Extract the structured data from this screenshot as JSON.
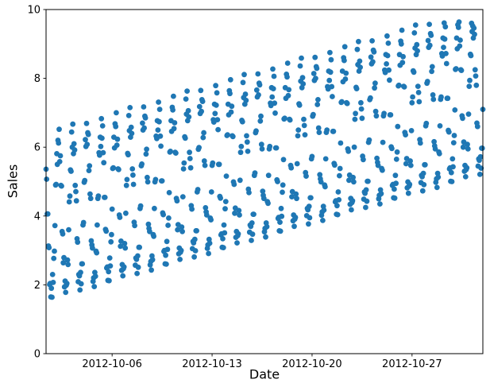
{
  "chart_data": {
    "type": "scatter",
    "title": "",
    "xlabel": "Date",
    "ylabel": "Sales",
    "marker_color": "#1f77b4",
    "axis_color": "#000000",
    "background_color": "#ffffff",
    "grid": false,
    "legend_position": "none",
    "ylim": [
      0,
      10
    ],
    "y_ticks": [
      0,
      2,
      4,
      6,
      8,
      10
    ],
    "x_range_days": [
      0.375,
      30.9583
    ],
    "x_ticks": [
      {
        "day": 5,
        "label": "2012-10-06"
      },
      {
        "day": 12,
        "label": "2012-10-13"
      },
      {
        "day": 19,
        "label": "2012-10-20"
      },
      {
        "day": 26,
        "label": "2012-10-27"
      }
    ],
    "sample_interval_hours": 1,
    "series": [
      {
        "name": "Sales",
        "days": [
          {
            "date": "2012-10-01",
            "start_hour": 9,
            "values": [
              5.36,
              5.07,
              4.06,
              4.06,
              3.13,
              3.08,
              2.01,
              2.04,
              1.65,
              1.9,
              1.64,
              2.3,
              2.07,
              2.77,
              2.98
            ]
          },
          {
            "date": "2012-10-02",
            "start_hour": 0,
            "values": [
              3.72,
              4.9,
              4.92,
              5.81,
              5.5,
              6.2,
              6.12,
              6.52,
              5.58,
              5.75,
              4.89,
              4.87,
              3.55,
              3.48,
              2.64,
              2.79,
              1.94,
              2.11,
              1.78,
              1.99,
              2.04,
              2.72,
              2.59,
              3.6
            ]
          },
          {
            "date": "2012-10-03",
            "start_hour": 0,
            "values": [
              4.41,
              4.58,
              5.34,
              5.3,
              6.44,
              6.0,
              6.67,
              5.81,
              6.1,
              5.92,
              4.89,
              4.71,
              4.44,
              3.34,
              3.24,
              2.09,
              2.3,
              2.26,
              1.85,
              2.36,
              2.03,
              2.61,
              2.61,
              3.74
            ]
          },
          {
            "date": "2012-10-04",
            "start_hour": 0,
            "values": [
              3.81,
              4.98,
              5.03,
              6.22,
              6.02,
              6.69,
              6.08,
              6.42,
              6.37,
              5.32,
              5.46,
              4.64,
              4.51,
              3.28,
              3.16,
              3.07,
              2.1,
              2.2,
              1.95,
              2.36,
              2.25,
              2.98,
              2.93,
              3.74
            ]
          },
          {
            "date": "2012-10-05",
            "start_hour": 0,
            "values": [
              4.51,
              4.58,
              5.84,
              5.77,
              6.29,
              6.02,
              6.83,
              6.26,
              6.62,
              5.84,
              5.55,
              4.54,
              4.54,
              3.61,
              3.56,
              2.49,
              2.52,
              2.13,
              2.38,
              2.12,
              2.78,
              2.55,
              3.25,
              3.46
            ]
          },
          {
            "date": "2012-10-06",
            "start_hour": 0,
            "values": [
              4.2,
              5.38,
              5.4,
              6.29,
              5.98,
              6.68,
              6.6,
              7.0,
              6.06,
              6.23,
              5.37,
              5.35,
              4.03,
              3.96,
              3.12,
              3.27,
              2.42,
              2.59,
              2.26,
              2.47,
              2.52,
              3.2,
              3.07,
              4.08
            ]
          },
          {
            "date": "2012-10-07",
            "start_hour": 0,
            "values": [
              4.89,
              5.06,
              5.82,
              5.78,
              6.92,
              6.48,
              7.15,
              6.29,
              6.58,
              6.4,
              5.37,
              5.19,
              4.92,
              3.82,
              3.72,
              2.57,
              2.78,
              2.74,
              2.33,
              2.84,
              2.51,
              3.09,
              3.09,
              4.22
            ]
          },
          {
            "date": "2012-10-08",
            "start_hour": 0,
            "values": [
              4.29,
              5.46,
              5.51,
              6.7,
              6.5,
              7.17,
              6.56,
              6.9,
              6.85,
              5.8,
              5.94,
              5.12,
              4.99,
              3.76,
              3.64,
              3.55,
              2.58,
              2.68,
              2.43,
              2.84,
              2.73,
              3.46,
              3.41,
              4.22
            ]
          },
          {
            "date": "2012-10-09",
            "start_hour": 0,
            "values": [
              4.99,
              5.06,
              6.32,
              6.25,
              6.77,
              6.5,
              7.31,
              6.74,
              7.1,
              6.32,
              6.03,
              5.02,
              5.02,
              4.09,
              4.04,
              2.97,
              3.0,
              2.61,
              2.86,
              2.6,
              3.26,
              3.03,
              3.73,
              3.94
            ]
          },
          {
            "date": "2012-10-10",
            "start_hour": 0,
            "values": [
              4.68,
              5.86,
              5.88,
              6.77,
              6.46,
              7.16,
              7.08,
              7.48,
              6.54,
              6.71,
              5.85,
              5.83,
              4.51,
              4.44,
              3.6,
              3.75,
              2.9,
              3.07,
              2.74,
              2.95,
              3.0,
              3.68,
              3.55,
              4.56
            ]
          },
          {
            "date": "2012-10-11",
            "start_hour": 0,
            "values": [
              5.37,
              5.54,
              6.3,
              6.26,
              7.4,
              6.96,
              7.63,
              6.77,
              7.06,
              6.88,
              5.85,
              5.67,
              5.4,
              4.3,
              4.2,
              3.05,
              3.26,
              3.22,
              2.81,
              3.32,
              2.99,
              3.57,
              3.57,
              4.7
            ]
          },
          {
            "date": "2012-10-12",
            "start_hour": 0,
            "values": [
              4.77,
              5.94,
              5.99,
              7.18,
              6.98,
              7.65,
              7.04,
              7.38,
              7.33,
              6.28,
              6.42,
              5.6,
              5.47,
              4.24,
              4.12,
              4.03,
              3.06,
              3.16,
              2.91,
              3.32,
              3.21,
              3.94,
              3.89,
              4.7
            ]
          },
          {
            "date": "2012-10-13",
            "start_hour": 0,
            "values": [
              5.47,
              5.54,
              6.8,
              6.73,
              7.25,
              6.98,
              7.79,
              7.22,
              7.58,
              6.8,
              6.51,
              5.5,
              5.5,
              4.57,
              4.52,
              3.45,
              3.48,
              3.09,
              3.34,
              3.08,
              3.74,
              3.51,
              4.21,
              4.42
            ]
          },
          {
            "date": "2012-10-14",
            "start_hour": 0,
            "values": [
              5.16,
              6.34,
              6.36,
              7.25,
              6.94,
              7.64,
              7.56,
              7.96,
              7.02,
              7.19,
              6.33,
              6.31,
              4.99,
              4.92,
              4.08,
              4.23,
              3.38,
              3.55,
              3.22,
              3.43,
              3.48,
              4.16,
              4.03,
              5.04
            ]
          },
          {
            "date": "2012-10-15",
            "start_hour": 0,
            "values": [
              5.85,
              6.02,
              6.78,
              6.74,
              7.88,
              7.44,
              8.11,
              7.25,
              7.54,
              7.36,
              6.33,
              6.15,
              5.88,
              4.78,
              4.68,
              3.53,
              3.74,
              3.7,
              3.29,
              3.8,
              3.47,
              4.05,
              4.05,
              5.18
            ]
          },
          {
            "date": "2012-10-16",
            "start_hour": 0,
            "values": [
              5.25,
              6.42,
              6.47,
              7.66,
              7.46,
              8.13,
              7.52,
              7.86,
              7.81,
              6.76,
              6.9,
              6.08,
              5.95,
              4.72,
              4.6,
              4.51,
              3.54,
              3.64,
              3.39,
              3.8,
              3.69,
              4.42,
              4.37,
              5.18
            ]
          },
          {
            "date": "2012-10-17",
            "start_hour": 0,
            "values": [
              5.95,
              6.02,
              7.28,
              7.21,
              7.73,
              7.46,
              8.27,
              7.7,
              8.06,
              7.28,
              6.99,
              5.98,
              5.98,
              5.05,
              5.0,
              3.93,
              3.96,
              3.57,
              3.82,
              3.56,
              4.22,
              3.99,
              4.69,
              4.9
            ]
          },
          {
            "date": "2012-10-18",
            "start_hour": 0,
            "values": [
              5.64,
              6.82,
              6.84,
              7.73,
              7.42,
              8.12,
              8.04,
              8.44,
              7.5,
              7.67,
              6.81,
              6.79,
              5.47,
              5.4,
              4.56,
              4.71,
              3.86,
              4.03,
              3.7,
              3.91,
              3.96,
              4.64,
              4.51,
              5.52
            ]
          },
          {
            "date": "2012-10-19",
            "start_hour": 0,
            "values": [
              6.33,
              6.5,
              7.26,
              7.22,
              8.36,
              7.92,
              8.59,
              7.73,
              8.02,
              7.84,
              6.81,
              6.63,
              6.36,
              5.26,
              5.16,
              4.01,
              4.22,
              4.18,
              3.77,
              4.28,
              3.95,
              4.53,
              4.53,
              5.66
            ]
          },
          {
            "date": "2012-10-20",
            "start_hour": 0,
            "values": [
              5.73,
              6.9,
              6.95,
              8.14,
              7.94,
              8.61,
              8.0,
              8.34,
              8.29,
              7.24,
              7.38,
              6.56,
              6.43,
              5.2,
              5.08,
              4.99,
              4.02,
              4.12,
              3.87,
              4.28,
              4.17,
              4.9,
              4.85,
              5.66
            ]
          },
          {
            "date": "2012-10-21",
            "start_hour": 0,
            "values": [
              6.43,
              6.5,
              7.76,
              7.69,
              8.21,
              7.94,
              8.75,
              8.18,
              8.54,
              7.76,
              7.47,
              6.46,
              6.46,
              5.53,
              5.48,
              4.41,
              4.44,
              4.05,
              4.3,
              4.04,
              4.7,
              4.47,
              5.17,
              5.38
            ]
          },
          {
            "date": "2012-10-22",
            "start_hour": 0,
            "values": [
              6.12,
              7.3,
              7.32,
              8.21,
              7.9,
              8.6,
              8.52,
              8.92,
              7.98,
              8.15,
              7.29,
              7.27,
              5.95,
              5.88,
              5.04,
              5.19,
              4.34,
              4.51,
              4.18,
              4.39,
              4.44,
              5.12,
              4.99,
              6.0
            ]
          },
          {
            "date": "2012-10-23",
            "start_hour": 0,
            "values": [
              6.81,
              6.98,
              7.74,
              7.7,
              8.84,
              8.4,
              9.07,
              8.21,
              8.5,
              8.32,
              7.29,
              7.11,
              6.84,
              5.74,
              5.64,
              4.49,
              4.7,
              4.66,
              4.25,
              4.76,
              4.43,
              5.01,
              5.01,
              6.14
            ]
          },
          {
            "date": "2012-10-24",
            "start_hour": 0,
            "values": [
              6.21,
              7.38,
              7.43,
              8.62,
              8.42,
              9.09,
              8.48,
              8.82,
              8.77,
              7.72,
              7.86,
              7.04,
              6.91,
              5.68,
              5.56,
              5.47,
              4.5,
              4.6,
              4.35,
              4.76,
              4.65,
              5.38,
              5.33,
              6.14
            ]
          },
          {
            "date": "2012-10-25",
            "start_hour": 0,
            "values": [
              6.91,
              6.98,
              8.24,
              8.17,
              8.69,
              8.42,
              9.23,
              8.66,
              9.02,
              8.24,
              7.95,
              6.94,
              6.94,
              6.01,
              5.96,
              4.89,
              4.92,
              4.53,
              4.78,
              4.52,
              5.18,
              4.95,
              5.65,
              5.86
            ]
          },
          {
            "date": "2012-10-26",
            "start_hour": 0,
            "values": [
              6.6,
              7.78,
              7.8,
              8.69,
              8.38,
              9.08,
              9.0,
              9.4,
              8.46,
              8.63,
              7.77,
              7.75,
              6.43,
              6.36,
              5.52,
              5.67,
              4.82,
              4.99,
              4.66,
              4.87,
              4.92,
              5.6,
              5.47,
              6.48
            ]
          },
          {
            "date": "2012-10-27",
            "start_hour": 0,
            "values": [
              7.29,
              7.46,
              8.22,
              8.18,
              9.32,
              8.88,
              9.55,
              8.69,
              8.98,
              8.8,
              7.77,
              7.59,
              7.32,
              6.22,
              6.12,
              4.97,
              5.18,
              5.14,
              4.73,
              5.24,
              4.91,
              5.49,
              5.49,
              6.62
            ]
          },
          {
            "date": "2012-10-28",
            "start_hour": 0,
            "values": [
              6.69,
              7.86,
              7.91,
              9.1,
              8.9,
              9.57,
              8.96,
              9.3,
              9.25,
              8.2,
              8.34,
              7.52,
              7.39,
              6.16,
              6.04,
              5.95,
              4.98,
              5.08,
              4.83,
              5.24,
              5.13,
              5.86,
              5.81,
              6.62
            ]
          },
          {
            "date": "2012-10-29",
            "start_hour": 0,
            "values": [
              7.39,
              7.46,
              8.72,
              8.65,
              9.17,
              8.9,
              9.61,
              9.14,
              9.5,
              8.72,
              8.43,
              7.42,
              7.42,
              6.49,
              6.44,
              5.37,
              5.4,
              5.01,
              5.26,
              5.0,
              5.66,
              5.43,
              6.13,
              6.34
            ]
          },
          {
            "date": "2012-10-30",
            "start_hour": 0,
            "values": [
              7.08,
              8.26,
              8.28,
              9.17,
              8.86,
              9.56,
              9.48,
              9.64,
              8.94,
              9.11,
              8.25,
              8.23,
              6.91,
              6.84,
              6.0,
              6.15,
              5.3,
              5.47,
              5.14,
              5.35,
              5.4,
              6.08,
              5.95,
              6.96
            ]
          },
          {
            "date": "2012-10-31",
            "start_hour": 0,
            "values": [
              7.77,
              7.94,
              8.7,
              8.66,
              9.6,
              9.36,
              9.52,
              9.17,
              9.46,
              9.28,
              8.25,
              8.07,
              7.8,
              6.7,
              6.6,
              5.45,
              5.66,
              5.62,
              5.21,
              5.72,
              5.39,
              5.97,
              5.97,
              7.1
            ]
          }
        ]
      }
    ]
  }
}
